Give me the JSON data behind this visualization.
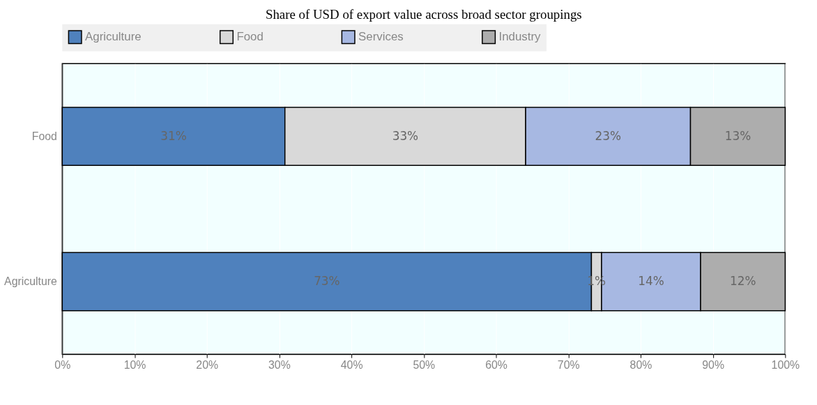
{
  "chart_data": {
    "type": "bar",
    "orientation": "horizontal",
    "stacked": true,
    "title": "Share of USD of export value across broad sector groupings",
    "categories": [
      "Food",
      "Agriculture"
    ],
    "series": [
      {
        "name": "Agriculture",
        "color": "#4f81bd",
        "values": [
          30.8,
          73.2
        ],
        "value_labels": [
          "31%",
          "73%"
        ]
      },
      {
        "name": "Food",
        "color": "#d9d9d9",
        "values": [
          33.3,
          1.4
        ],
        "value_labels": [
          "33%",
          "1%"
        ]
      },
      {
        "name": "Services",
        "color": "#a7b8e2",
        "values": [
          22.8,
          13.7
        ],
        "value_labels": [
          "23%",
          "14%"
        ]
      },
      {
        "name": "Industry",
        "color": "#adadad",
        "values": [
          13.1,
          11.7
        ],
        "value_labels": [
          "13%",
          "12%"
        ]
      }
    ],
    "xlim": [
      0,
      100
    ],
    "xticks": [
      {
        "value": 0,
        "label": "0%"
      },
      {
        "value": 10,
        "label": "10%"
      },
      {
        "value": 20,
        "label": "20%"
      },
      {
        "value": 30,
        "label": "30%"
      },
      {
        "value": 40,
        "label": "40%"
      },
      {
        "value": 50,
        "label": "50%"
      },
      {
        "value": 60,
        "label": "60%"
      },
      {
        "value": 70,
        "label": "70%"
      },
      {
        "value": 80,
        "label": "80%"
      },
      {
        "value": 90,
        "label": "90%"
      },
      {
        "value": 100,
        "label": "100%"
      }
    ],
    "grid": "x",
    "legend": "top"
  }
}
